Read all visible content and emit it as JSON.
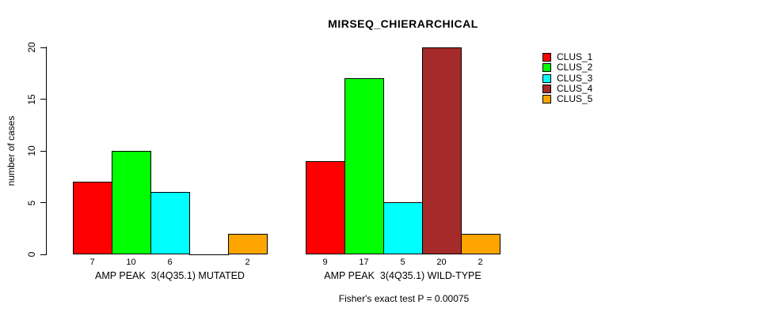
{
  "title": "MIRSEQ_CHIERARCHICAL",
  "footer": "Fisher's exact test P = 0.00075",
  "axes": {
    "y_label": "number of cases",
    "y_ticks": [
      "0",
      "5",
      "10",
      "15",
      "20"
    ]
  },
  "legend": {
    "position": "right",
    "items": [
      {
        "label": "CLUS_1",
        "color": "#FF0000"
      },
      {
        "label": "CLUS_2",
        "color": "#00FF00"
      },
      {
        "label": "CLUS_3",
        "color": "#00FFFF"
      },
      {
        "label": "CLUS_4",
        "color": "#A52A2A"
      },
      {
        "label": "CLUS_5",
        "color": "#FFA500"
      }
    ]
  },
  "chart_data": {
    "type": "bar",
    "title": "MIRSEQ_CHIERARCHICAL",
    "xlabel": "",
    "ylabel": "number of cases",
    "ylim": [
      0,
      20
    ],
    "yticks": [
      0,
      5,
      10,
      15,
      20
    ],
    "grid": false,
    "legend_position": "right",
    "categories": [
      "CLUS_1",
      "CLUS_2",
      "CLUS_3",
      "CLUS_4",
      "CLUS_5"
    ],
    "series_colors": [
      "#FF0000",
      "#00FF00",
      "#00FFFF",
      "#A52A2A",
      "#FFA500"
    ],
    "groups": [
      {
        "label": "AMP PEAK  3(4Q35.1) MUTATED",
        "values": [
          7,
          10,
          6,
          0,
          2
        ],
        "bar_value_labels": [
          "7",
          "10",
          "6",
          "",
          "2"
        ]
      },
      {
        "label": "AMP PEAK  3(4Q35.1) WILD-TYPE",
        "values": [
          9,
          17,
          5,
          20,
          2
        ],
        "bar_value_labels": [
          "9",
          "17",
          "5",
          "20",
          "2"
        ]
      }
    ],
    "annotation": "Fisher's exact test P = 0.00075"
  }
}
